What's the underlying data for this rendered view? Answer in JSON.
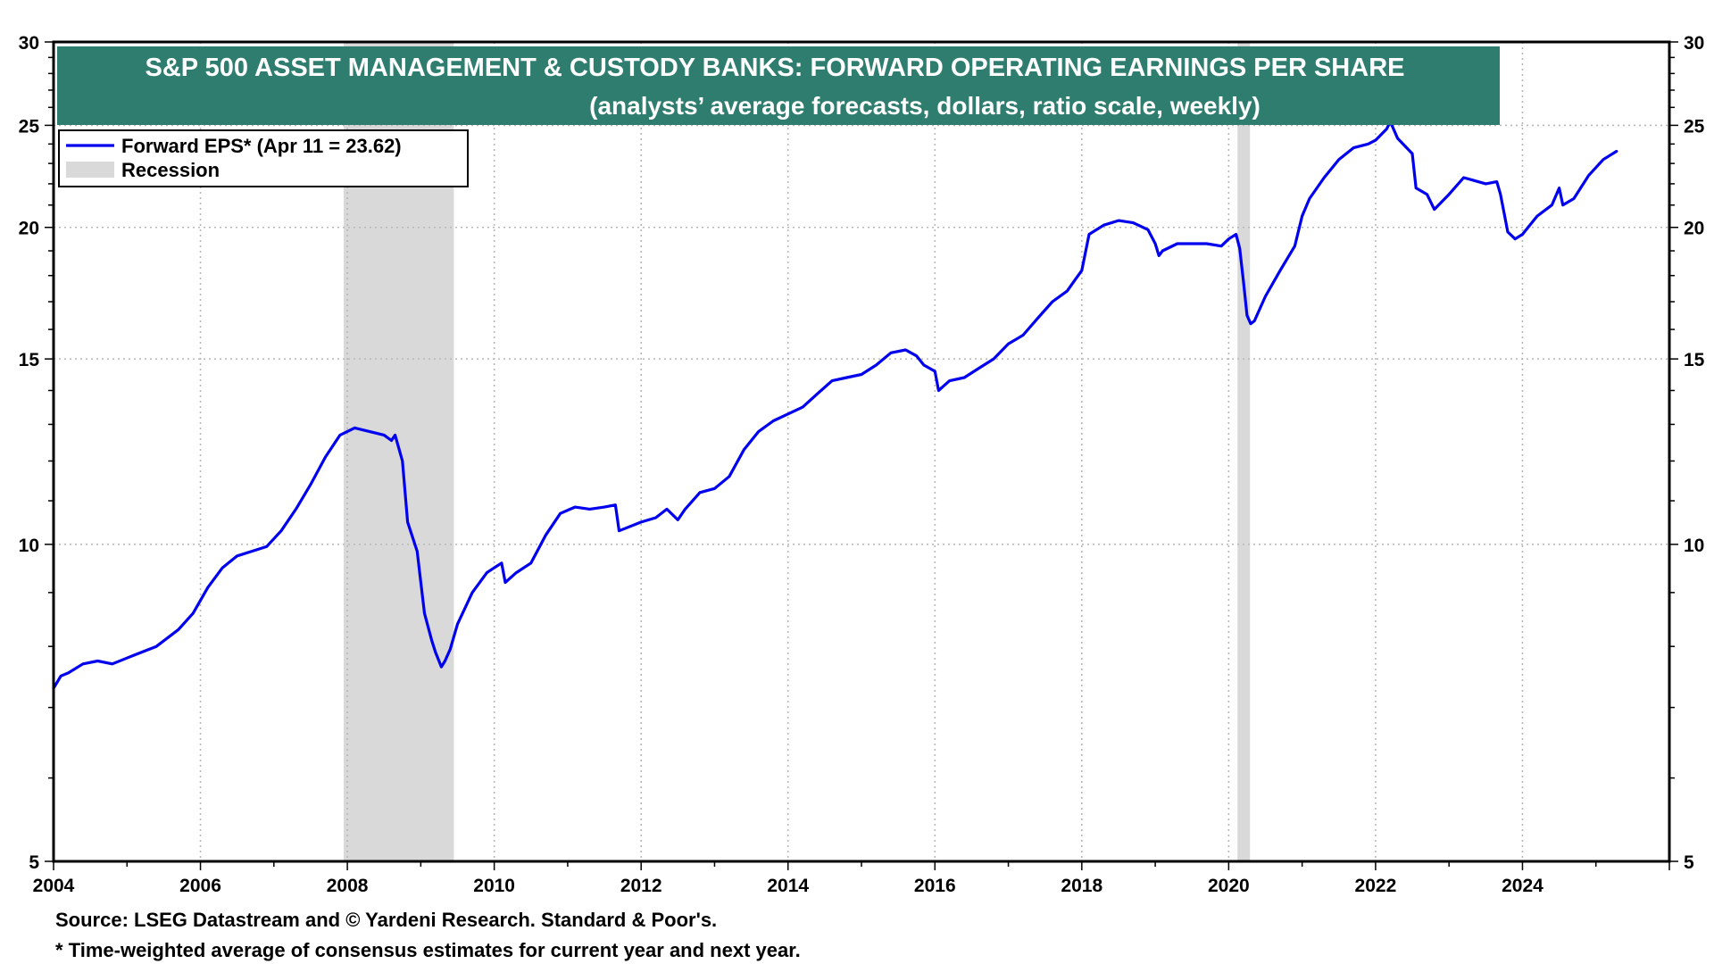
{
  "colors": {
    "series": "#0000ee",
    "recession": "#d9d9d9",
    "title_bg": "#2e7d6e",
    "grid": "#b8b8b8"
  },
  "footer": {
    "source": "Source: LSEG Datastream and © Yardeni Research. Standard & Poor's.",
    "note": "* Time-weighted average of consensus estimates for current year and next year."
  },
  "chart_data": {
    "type": "line",
    "title": "S&P 500 ASSET MANAGEMENT & CUSTODY BANKS: FORWARD OPERATING EARNINGS PER SHARE",
    "subtitle": "(analysts’ average forecasts, dollars, ratio scale, weekly)",
    "xlabel": "",
    "ylabel": "",
    "y_scale": "log",
    "xlim": [
      2004,
      2026.0
    ],
    "ylim": [
      5,
      30
    ],
    "x_ticks": [
      "2004",
      "2006",
      "2008",
      "2010",
      "2012",
      "2014",
      "2016",
      "2018",
      "2020",
      "2022",
      "2024"
    ],
    "y_ticks": [
      "5",
      "10",
      "15",
      "20",
      "25",
      "30"
    ],
    "grid": true,
    "legend": {
      "position": "top-left",
      "series_label": "Forward EPS* (Apr 11 = 23.62)",
      "recession_label": "Recession"
    },
    "recessions": [
      [
        2007.95,
        2009.45
      ],
      [
        2020.12,
        2020.29
      ]
    ],
    "series": [
      {
        "name": "Forward EPS*",
        "x": [
          2004.0,
          2004.1,
          2004.2,
          2004.4,
          2004.6,
          2004.8,
          2005.0,
          2005.1,
          2005.4,
          2005.7,
          2005.9,
          2006.1,
          2006.3,
          2006.5,
          2006.7,
          2006.9,
          2007.1,
          2007.3,
          2007.5,
          2007.7,
          2007.9,
          2008.1,
          2008.3,
          2008.5,
          2008.6,
          2008.65,
          2008.75,
          2008.82,
          2008.9,
          2008.95,
          2009.0,
          2009.05,
          2009.15,
          2009.2,
          2009.28,
          2009.33,
          2009.4,
          2009.5,
          2009.7,
          2009.9,
          2010.0,
          2010.1,
          2010.15,
          2010.3,
          2010.5,
          2010.7,
          2010.9,
          2011.1,
          2011.3,
          2011.5,
          2011.65,
          2011.7,
          2011.85,
          2012.0,
          2012.2,
          2012.35,
          2012.5,
          2012.6,
          2012.8,
          2013.0,
          2013.2,
          2013.4,
          2013.6,
          2013.8,
          2014.0,
          2014.2,
          2014.4,
          2014.6,
          2014.8,
          2015.0,
          2015.2,
          2015.4,
          2015.6,
          2015.75,
          2015.85,
          2016.0,
          2016.05,
          2016.1,
          2016.2,
          2016.4,
          2016.6,
          2016.8,
          2017.0,
          2017.2,
          2017.4,
          2017.6,
          2017.8,
          2017.9,
          2018.0,
          2018.1,
          2018.3,
          2018.5,
          2018.7,
          2018.9,
          2019.0,
          2019.05,
          2019.1,
          2019.3,
          2019.5,
          2019.7,
          2019.9,
          2020.0,
          2020.1,
          2020.15,
          2020.2,
          2020.25,
          2020.3,
          2020.35,
          2020.5,
          2020.7,
          2020.9,
          2021.0,
          2021.1,
          2021.3,
          2021.5,
          2021.7,
          2021.9,
          2022.0,
          2022.15,
          2022.2,
          2022.3,
          2022.5,
          2022.55,
          2022.7,
          2022.8,
          2023.0,
          2023.2,
          2023.5,
          2023.65,
          2023.7,
          2023.8,
          2023.9,
          2024.0,
          2024.2,
          2024.4,
          2024.5,
          2024.55,
          2024.7,
          2024.9,
          2025.1,
          2025.28
        ],
        "values": [
          7.3,
          7.5,
          7.55,
          7.7,
          7.75,
          7.7,
          7.8,
          7.85,
          8.0,
          8.3,
          8.6,
          9.1,
          9.5,
          9.75,
          9.85,
          9.95,
          10.3,
          10.8,
          11.4,
          12.1,
          12.7,
          12.9,
          12.8,
          12.7,
          12.55,
          12.7,
          12.0,
          10.5,
          10.1,
          9.85,
          9.2,
          8.6,
          8.1,
          7.9,
          7.65,
          7.75,
          7.95,
          8.4,
          9.0,
          9.4,
          9.5,
          9.6,
          9.2,
          9.4,
          9.6,
          10.2,
          10.7,
          10.85,
          10.8,
          10.85,
          10.9,
          10.3,
          10.4,
          10.5,
          10.6,
          10.8,
          10.55,
          10.8,
          11.2,
          11.3,
          11.6,
          12.3,
          12.8,
          13.1,
          13.3,
          13.5,
          13.9,
          14.3,
          14.4,
          14.5,
          14.8,
          15.2,
          15.3,
          15.1,
          14.8,
          14.6,
          14.0,
          14.1,
          14.3,
          14.4,
          14.7,
          15.0,
          15.5,
          15.8,
          16.4,
          17.0,
          17.4,
          17.8,
          18.2,
          19.7,
          20.1,
          20.3,
          20.2,
          19.9,
          19.3,
          18.8,
          19.0,
          19.3,
          19.3,
          19.3,
          19.2,
          19.5,
          19.7,
          19.1,
          17.8,
          16.5,
          16.2,
          16.3,
          17.2,
          18.2,
          19.2,
          20.5,
          21.3,
          22.3,
          23.2,
          23.8,
          24.0,
          24.2,
          24.8,
          25.2,
          24.3,
          23.5,
          21.8,
          21.5,
          20.8,
          21.5,
          22.3,
          22.0,
          22.1,
          21.5,
          19.8,
          19.5,
          19.7,
          20.5,
          21.0,
          21.8,
          21.0,
          21.3,
          22.4,
          23.2,
          23.62
        ]
      }
    ]
  }
}
